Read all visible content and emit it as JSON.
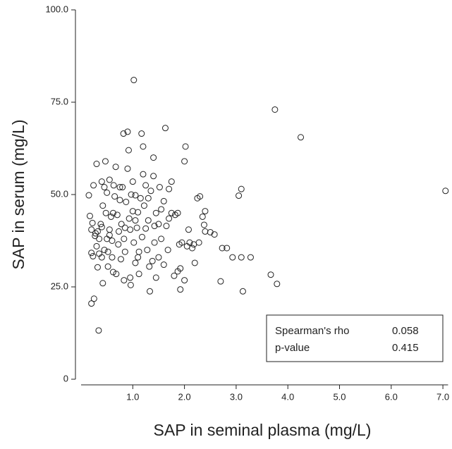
{
  "chart_data": {
    "type": "scatter",
    "x_label": "SAP in seminal plasma (mg/L)",
    "y_label": "SAP in serum (mg/L)",
    "xlim": [
      0,
      7.1
    ],
    "ylim": [
      0,
      100
    ],
    "xticks": [
      {
        "value": 1,
        "label": "1.0"
      },
      {
        "value": 2,
        "label": "2.0"
      },
      {
        "value": 3,
        "label": "3.0"
      },
      {
        "value": 4,
        "label": "4.0"
      },
      {
        "value": 5,
        "label": "5.0"
      },
      {
        "value": 6,
        "label": "6.0"
      },
      {
        "value": 7,
        "label": "7.0"
      }
    ],
    "yticks": [
      0,
      {
        "value": 25,
        "label": "25.0"
      },
      {
        "value": 50,
        "label": "50.0"
      },
      {
        "value": 75,
        "label": "75.0"
      },
      {
        "value": 100,
        "label": "100.0"
      }
    ],
    "color": "#222222",
    "x": [
      0.15,
      0.17,
      0.2,
      0.22,
      0.2,
      0.23,
      0.27,
      0.24,
      0.3,
      0.28,
      0.32,
      0.3,
      0.32,
      0.35,
      0.38,
      0.4,
      0.4,
      0.42,
      0.45,
      0.45,
      0.47,
      0.48,
      0.5,
      0.5,
      0.52,
      0.52,
      0.55,
      0.55,
      0.58,
      0.6,
      0.6,
      0.62,
      0.63,
      0.65,
      0.67,
      0.68,
      0.7,
      0.72,
      0.73,
      0.75,
      0.77,
      0.78,
      0.8,
      0.82,
      0.83,
      0.85,
      0.87,
      0.9,
      0.9,
      0.92,
      0.93,
      0.95,
      0.95,
      0.97,
      1,
      1,
      1.02,
      1.05,
      1.05,
      1.08,
      1.1,
      1.1,
      1.12,
      1.15,
      1.17,
      1.18,
      1.2,
      1.2,
      1.22,
      1.25,
      1.25,
      1.28,
      1.3,
      1.3,
      1.32,
      1.35,
      1.38,
      1.4,
      1.4,
      1.42,
      1.45,
      1.45,
      1.5,
      1.5,
      1.52,
      1.55,
      1.55,
      1.6,
      1.6,
      1.63,
      1.65,
      1.68,
      1.7,
      1.7,
      1.75,
      1.75,
      1.8,
      1.82,
      1.87,
      1.9,
      1.92,
      1.95,
      2,
      2.02,
      2.05,
      2.08,
      2.1,
      2.15,
      2.18,
      2.2,
      2.25,
      2.28,
      2.3,
      2.35,
      2.38,
      2.4,
      2.4,
      2.5,
      2.58,
      0.4,
      0.55,
      0.85,
      1.05,
      0.35,
      0.62,
      0.75,
      1.12,
      1.42,
      2.0,
      1.87,
      3.1,
      3.05,
      3.28,
      2.93,
      3.1,
      3.13,
      2.82,
      2.73,
      2.7,
      3.67,
      3.79,
      3.75,
      4.25,
      7.05,
      1.02,
      0.34,
      0.2,
      0.25,
      0.96,
      1.33,
      1.92,
      0.42,
      0.83
    ],
    "values": [
      49.8,
      44.2,
      40.5,
      42.3,
      34.2,
      33.3,
      38.8,
      52.5,
      58.3,
      39.5,
      40,
      36,
      30.3,
      34,
      42,
      41.2,
      53.5,
      47,
      52,
      35,
      59,
      45,
      50.5,
      38,
      30.5,
      34.5,
      54,
      40.5,
      44,
      37.5,
      33,
      29,
      52.5,
      49.5,
      57.5,
      28.5,
      44.5,
      36.5,
      40,
      48.5,
      32.5,
      42,
      52,
      66.5,
      38,
      34.5,
      48,
      67,
      57,
      62,
      43.5,
      27.5,
      40.5,
      50,
      45.5,
      53.5,
      37,
      49.8,
      31.5,
      41,
      33,
      45.2,
      28.5,
      49,
      66.5,
      38.5,
      55.5,
      63,
      47,
      40.8,
      52.5,
      35,
      43,
      49,
      30.5,
      51,
      32,
      55,
      60,
      37,
      45,
      27.5,
      33,
      42,
      52,
      38,
      46,
      31,
      48.2,
      68,
      41.5,
      35,
      51.5,
      43.5,
      45,
      53.5,
      28,
      44.5,
      45,
      36.5,
      30,
      37,
      59,
      63,
      36,
      40.5,
      37,
      35.5,
      36.5,
      31.5,
      49,
      37,
      49.5,
      44,
      41.8,
      40,
      45.5,
      39.8,
      39.2,
      33,
      39,
      41,
      43,
      38,
      45,
      52,
      34.5,
      41.5,
      26.8,
      29.2,
      51.5,
      49.7,
      33,
      33,
      33,
      23.8,
      35.5,
      35.5,
      26.5,
      28.3,
      25.8,
      73,
      65.5,
      51,
      81,
      13.2,
      20.5,
      21.8,
      25.5,
      23.8,
      24.3,
      26,
      26.8
    ],
    "table": {
      "rows": [
        [
          "Spearman's rho",
          "0.058"
        ],
        [
          "p-value",
          "0.415"
        ]
      ]
    }
  }
}
